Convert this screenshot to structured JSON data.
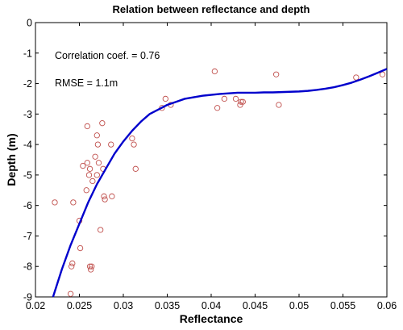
{
  "chart_data": {
    "type": "scatter",
    "title": "Relation between reflectance and depth",
    "xlabel": "Reflectance",
    "ylabel": "Depth (m)",
    "xlim": [
      0.02,
      0.06
    ],
    "ylim": [
      -9,
      0
    ],
    "xticks": [
      0.02,
      0.025,
      0.03,
      0.035,
      0.04,
      0.045,
      0.05,
      0.055,
      0.06
    ],
    "xtick_labels": [
      "0.02",
      "0.025",
      "0.03",
      "0.035",
      "0.04",
      "0.045",
      "0.05",
      "0.055",
      "0.06"
    ],
    "yticks": [
      0,
      -1,
      -2,
      -3,
      -4,
      -5,
      -6,
      -7,
      -8,
      -9
    ],
    "ytick_labels": [
      "0",
      "-1",
      "-2",
      "-3",
      "-4",
      "-5",
      "-6",
      "-7",
      "-8",
      "-9"
    ],
    "grid": false,
    "annotations": [
      "Correlation coef. = 0.76",
      "RMSE = 1.1m"
    ],
    "series": [
      {
        "kind": "scatter",
        "marker": "open-circle",
        "color": "#c0504d",
        "points": [
          [
            0.0222,
            -5.9
          ],
          [
            0.024,
            -8.9
          ],
          [
            0.0241,
            -8.0
          ],
          [
            0.0242,
            -7.9
          ],
          [
            0.0243,
            -5.9
          ],
          [
            0.025,
            -6.5
          ],
          [
            0.0251,
            -7.4
          ],
          [
            0.0254,
            -4.7
          ],
          [
            0.0258,
            -5.5
          ],
          [
            0.0259,
            -3.4
          ],
          [
            0.0259,
            -4.6
          ],
          [
            0.0261,
            -5.0
          ],
          [
            0.0262,
            -4.8
          ],
          [
            0.0262,
            -8.0
          ],
          [
            0.0263,
            -8.1
          ],
          [
            0.0264,
            -8.0
          ],
          [
            0.0265,
            -5.2
          ],
          [
            0.0268,
            -4.4
          ],
          [
            0.027,
            -3.7
          ],
          [
            0.027,
            -5.0
          ],
          [
            0.0271,
            -4.0
          ],
          [
            0.0272,
            -4.6
          ],
          [
            0.0274,
            -6.8
          ],
          [
            0.0276,
            -3.3
          ],
          [
            0.0277,
            -4.8
          ],
          [
            0.0278,
            -5.7
          ],
          [
            0.0279,
            -5.8
          ],
          [
            0.0286,
            -4.0
          ],
          [
            0.0287,
            -5.7
          ],
          [
            0.031,
            -3.8
          ],
          [
            0.0312,
            -4.0
          ],
          [
            0.0314,
            -4.8
          ],
          [
            0.0344,
            -2.8
          ],
          [
            0.0348,
            -2.5
          ],
          [
            0.0354,
            -2.7
          ],
          [
            0.0404,
            -1.6
          ],
          [
            0.0407,
            -2.8
          ],
          [
            0.0415,
            -2.5
          ],
          [
            0.0428,
            -2.5
          ],
          [
            0.0433,
            -2.7
          ],
          [
            0.0434,
            -2.6
          ],
          [
            0.0436,
            -2.6
          ],
          [
            0.0474,
            -1.7
          ],
          [
            0.0477,
            -2.7
          ],
          [
            0.0565,
            -1.8
          ],
          [
            0.0595,
            -1.7
          ]
        ]
      },
      {
        "kind": "line",
        "color": "#0000cc",
        "x": [
          0.022,
          0.023,
          0.024,
          0.025,
          0.026,
          0.027,
          0.028,
          0.029,
          0.03,
          0.031,
          0.032,
          0.033,
          0.034,
          0.035,
          0.036,
          0.037,
          0.038,
          0.039,
          0.04,
          0.041,
          0.042,
          0.043,
          0.044,
          0.045,
          0.046,
          0.047,
          0.048,
          0.049,
          0.05,
          0.051,
          0.052,
          0.053,
          0.054,
          0.055,
          0.056,
          0.057,
          0.058,
          0.059,
          0.06
        ],
        "y": [
          -9.0,
          -8.1,
          -7.3,
          -6.6,
          -5.9,
          -5.3,
          -4.8,
          -4.3,
          -3.9,
          -3.55,
          -3.25,
          -3.0,
          -2.85,
          -2.7,
          -2.6,
          -2.5,
          -2.45,
          -2.4,
          -2.37,
          -2.34,
          -2.32,
          -2.3,
          -2.3,
          -2.3,
          -2.29,
          -2.29,
          -2.28,
          -2.27,
          -2.26,
          -2.24,
          -2.21,
          -2.17,
          -2.12,
          -2.05,
          -1.97,
          -1.87,
          -1.76,
          -1.64,
          -1.52
        ]
      }
    ]
  }
}
